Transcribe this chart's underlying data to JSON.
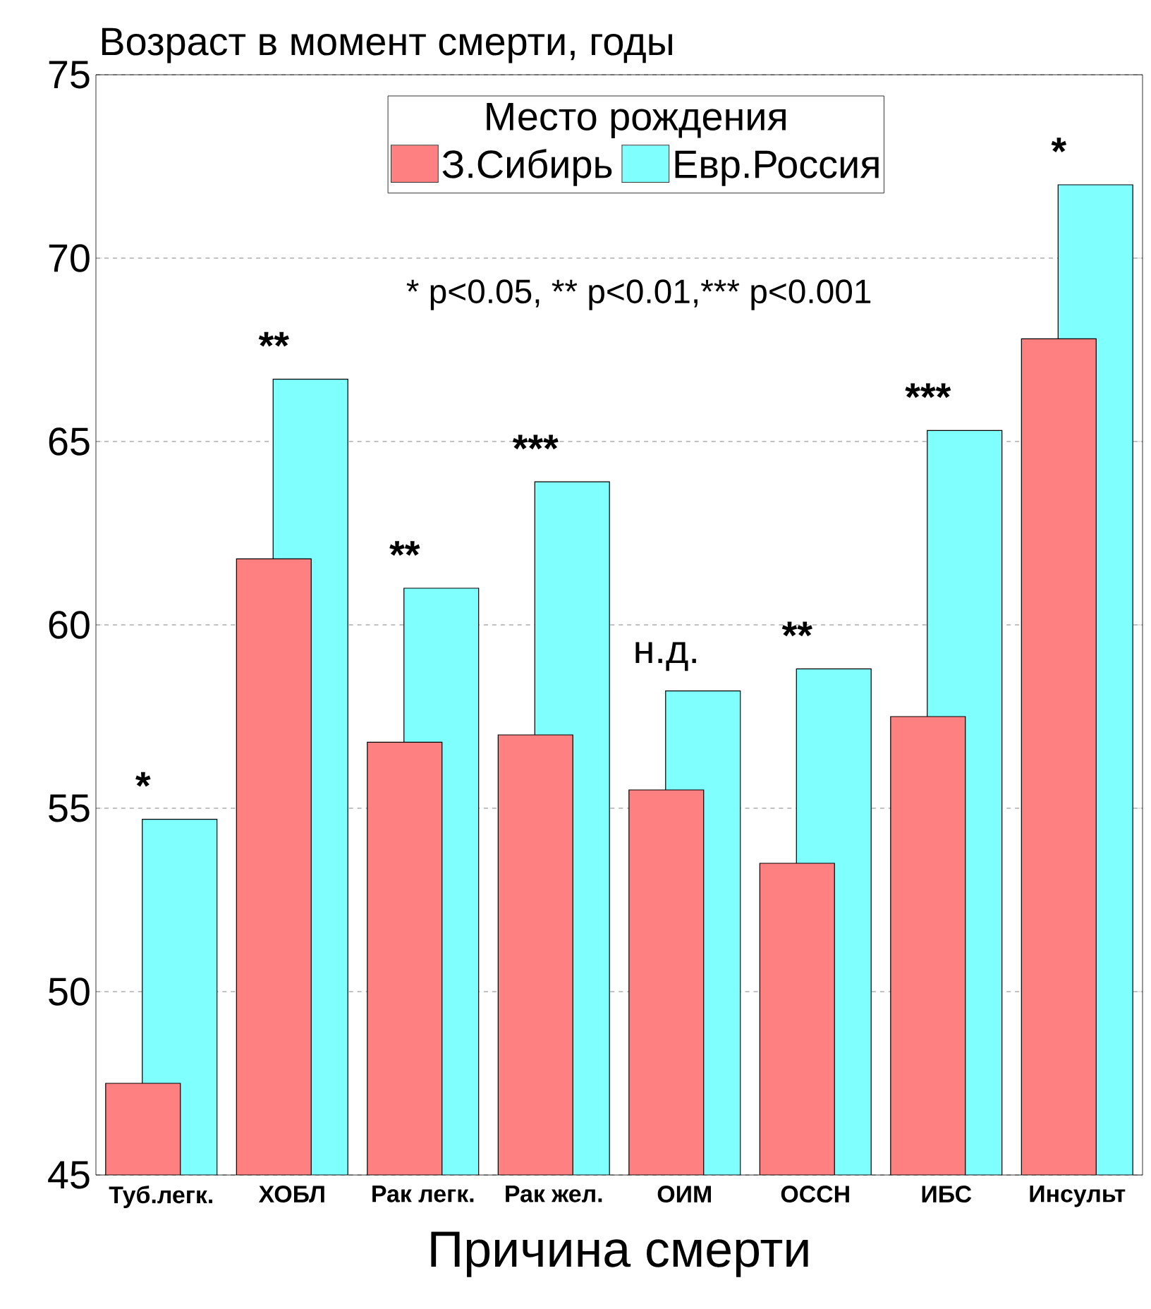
{
  "chart_data": {
    "type": "bar",
    "title": "Возраст в момент смерти, годы",
    "xlabel": "Причина смерти",
    "legend_title": "Место рождения",
    "categories": [
      "Туб.легк.",
      "ХОБЛ",
      "Рак легк.",
      "Рак жел.",
      "ОИМ",
      "ОССН",
      "ИБС",
      "Инсульт"
    ],
    "series": [
      {
        "name": "З.Сибирь",
        "color": "#ff8080",
        "values": [
          47.5,
          61.8,
          56.8,
          57.0,
          55.5,
          53.5,
          57.5,
          67.8
        ]
      },
      {
        "name": "Евр.Россия",
        "color": "#80ffff",
        "values": [
          54.7,
          66.7,
          61.0,
          63.9,
          58.2,
          58.8,
          65.3,
          72.0
        ]
      }
    ],
    "ylim": [
      45,
      75
    ],
    "yticks": [
      45,
      50,
      55,
      60,
      65,
      70,
      75
    ],
    "grid": "y",
    "legend": "top",
    "annotations": [
      {
        "text": "*",
        "x": "Туб.легк.",
        "y": 54.7
      },
      {
        "text": "**",
        "x": "ХОБЛ",
        "y": 66.7
      },
      {
        "text": "**",
        "x": "Рак легк.",
        "y": 61.0
      },
      {
        "text": "***",
        "x": "Рак жел.",
        "y": 63.9
      },
      {
        "text": "н.д.",
        "x": "ОИМ",
        "y": 58.2
      },
      {
        "text": "**",
        "x": "ОССН",
        "y": 58.8
      },
      {
        "text": "***",
        "x": "ИБС",
        "y": 65.3
      },
      {
        "text": "*",
        "x": "Инсульт",
        "y": 72.0
      },
      "* p<0.05, ** p<0.01,*** p<0.001"
    ]
  }
}
